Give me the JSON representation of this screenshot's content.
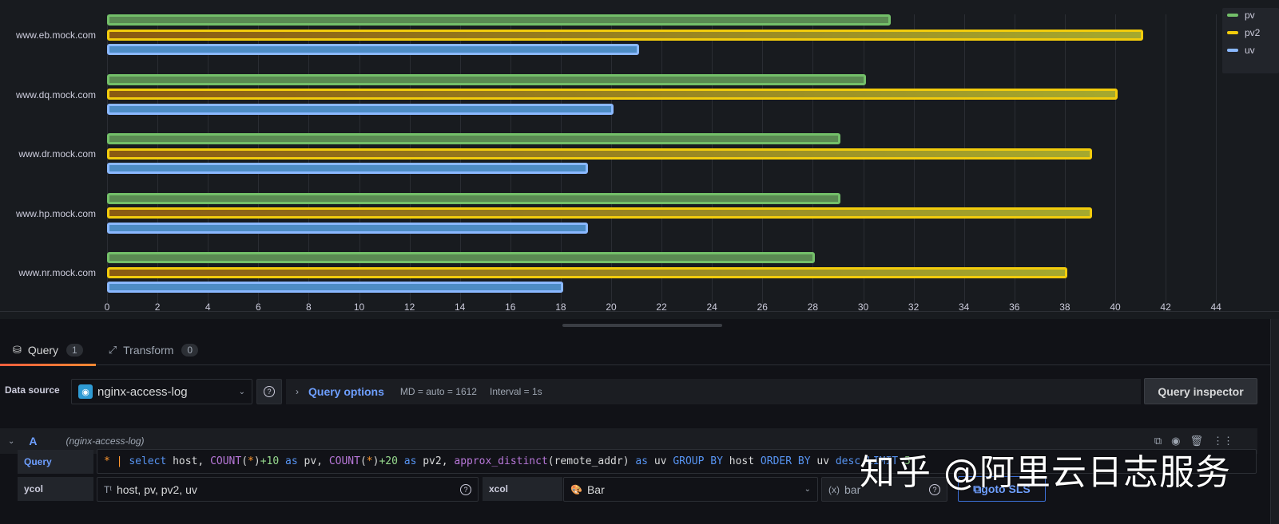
{
  "chart_data": {
    "type": "bar",
    "orientation": "horizontal",
    "categories": [
      "www.eb.mock.com",
      "www.dq.mock.com",
      "www.dr.mock.com",
      "www.hp.mock.com",
      "www.nr.mock.com"
    ],
    "series": [
      {
        "name": "pv",
        "color": "#73bf69",
        "values": [
          31,
          30,
          29,
          29,
          28
        ]
      },
      {
        "name": "pv2",
        "color": "#f2cc0c",
        "values": [
          41,
          40,
          39,
          39,
          38
        ]
      },
      {
        "name": "uv",
        "color": "#8ab8ff",
        "values": [
          21,
          20,
          19,
          19,
          18
        ]
      }
    ],
    "x_ticks": [
      "0",
      "2",
      "4",
      "6",
      "8",
      "10",
      "12",
      "14",
      "16",
      "18",
      "20",
      "22",
      "24",
      "26",
      "28",
      "30",
      "32",
      "34",
      "36",
      "38",
      "40",
      "42",
      "44"
    ],
    "xlim": [
      0,
      44
    ],
    "grid": true,
    "legend_position": "top-right",
    "title": "",
    "xlabel": "",
    "ylabel": ""
  },
  "tabs": [
    {
      "label": "Query",
      "count": "1",
      "icon": "database-icon"
    },
    {
      "label": "Transform",
      "count": "0",
      "icon": "transform-icon"
    }
  ],
  "datasource": {
    "label": "Data source",
    "name": "nginx-access-log",
    "help": "?"
  },
  "query_options": {
    "title": "Query options",
    "md": "MD = auto = 1612",
    "interval": "Interval = 1s"
  },
  "query_inspector_label": "Query inspector",
  "query": {
    "letter": "A",
    "datasource": "(nginx-access-log)",
    "query_label": "Query",
    "ycol_label": "ycol",
    "ycol_value": "host, pv, pv2, uv",
    "xcol_label": "xcol",
    "xcol_value": "Bar",
    "bar_value": "bar",
    "goto_label": "goto SLS",
    "code_tokens": [
      {
        "t": "* ",
        "c": "tok-op"
      },
      {
        "t": "| ",
        "c": "tok-op"
      },
      {
        "t": "select",
        "c": "tok-kw"
      },
      {
        "t": " host, ",
        "c": ""
      },
      {
        "t": "COUNT",
        "c": "tok-fn"
      },
      {
        "t": "(",
        "c": ""
      },
      {
        "t": "*",
        "c": "tok-op"
      },
      {
        "t": ")",
        "c": ""
      },
      {
        "t": "+10",
        "c": "tok-num"
      },
      {
        "t": " as",
        "c": "tok-kw"
      },
      {
        "t": " pv, ",
        "c": ""
      },
      {
        "t": "COUNT",
        "c": "tok-fn"
      },
      {
        "t": "(",
        "c": ""
      },
      {
        "t": "*",
        "c": "tok-op"
      },
      {
        "t": ")",
        "c": ""
      },
      {
        "t": "+20",
        "c": "tok-num"
      },
      {
        "t": " as",
        "c": "tok-kw"
      },
      {
        "t": " pv2, ",
        "c": ""
      },
      {
        "t": "approx_distinct",
        "c": "tok-fn"
      },
      {
        "t": "(remote_addr) ",
        "c": ""
      },
      {
        "t": "as",
        "c": "tok-kw"
      },
      {
        "t": " uv ",
        "c": ""
      },
      {
        "t": "GROUP BY",
        "c": "tok-kw"
      },
      {
        "t": " host ",
        "c": ""
      },
      {
        "t": "ORDER BY",
        "c": "tok-kw"
      },
      {
        "t": " uv ",
        "c": ""
      },
      {
        "t": "desc",
        "c": "tok-kw"
      },
      {
        "t": " ",
        "c": ""
      },
      {
        "t": "LIMIT",
        "c": "tok-kw"
      },
      {
        "t": " 5",
        "c": "tok-num"
      }
    ]
  },
  "watermark": "知乎 @阿里云日志服务"
}
